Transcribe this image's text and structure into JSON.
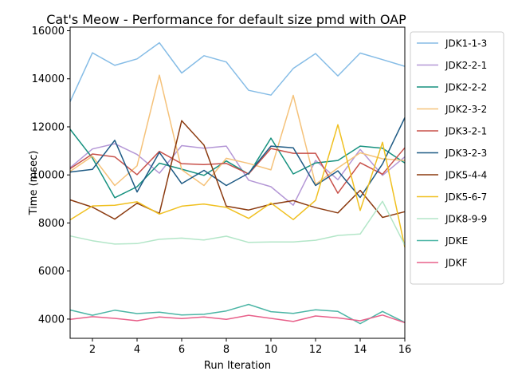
{
  "chart_data": {
    "type": "line",
    "title": "Cat's Meow - Performance for default size pmd with OAP",
    "xlabel": "Run Iteration",
    "ylabel": "Time (msec)",
    "xlim": [
      1,
      16
    ],
    "ylim": [
      3200,
      16150
    ],
    "xticks": [
      2,
      4,
      6,
      8,
      10,
      12,
      14,
      16
    ],
    "yticks": [
      4000,
      6000,
      8000,
      10000,
      12000,
      14000,
      16000
    ],
    "x": [
      1,
      2,
      3,
      4,
      5,
      6,
      7,
      8,
      9,
      10,
      11,
      12,
      13,
      14,
      15,
      16
    ],
    "grid": false,
    "legend_position": "outside-right",
    "series": [
      {
        "name": "JDK1-1-3",
        "color": "#85bce6",
        "values": [
          13050,
          15080,
          14560,
          14830,
          15500,
          14240,
          14960,
          14700,
          13520,
          13320,
          14430,
          15050,
          14120,
          15070,
          14800,
          14520
        ]
      },
      {
        "name": "JDK2-2-1",
        "color": "#b497d6",
        "values": [
          10300,
          11080,
          11300,
          10850,
          10070,
          11220,
          11110,
          11200,
          9780,
          9510,
          8740,
          10600,
          9800,
          11060,
          9980,
          10750
        ]
      },
      {
        "name": "JDK2-2-2",
        "color": "#16917f",
        "values": [
          11900,
          10700,
          9050,
          9510,
          10490,
          10240,
          9980,
          10580,
          10030,
          11530,
          10040,
          10500,
          10600,
          11200,
          11110,
          10500
        ]
      },
      {
        "name": "JDK2-3-2",
        "color": "#f5c27a",
        "values": [
          10150,
          10780,
          9560,
          10380,
          14150,
          10220,
          9560,
          10690,
          10480,
          10210,
          13310,
          9610,
          10290,
          10920,
          10670,
          10600
        ]
      },
      {
        "name": "JDK3-2-1",
        "color": "#c8514a",
        "values": [
          10260,
          10870,
          10750,
          10010,
          10980,
          10470,
          10430,
          10480,
          10040,
          11100,
          10900,
          10900,
          9240,
          10510,
          10030,
          11130
        ]
      },
      {
        "name": "JDK3-2-3",
        "color": "#1f5b85",
        "values": [
          10120,
          10230,
          11440,
          9290,
          10940,
          9640,
          10190,
          9560,
          10070,
          11200,
          11130,
          9560,
          10170,
          9060,
          10460,
          12380
        ]
      },
      {
        "name": "JDK5-4-4",
        "color": "#8b3a0f",
        "values": [
          8960,
          8660,
          8160,
          8820,
          8400,
          12260,
          11240,
          8700,
          8540,
          8780,
          8930,
          8640,
          8420,
          9360,
          8230,
          8470
        ]
      },
      {
        "name": "JDK5-6-7",
        "color": "#f0c020",
        "values": [
          8130,
          8710,
          8740,
          8880,
          8370,
          8700,
          8790,
          8650,
          8190,
          8830,
          8140,
          8940,
          12090,
          8520,
          11360,
          6990
        ]
      },
      {
        "name": "JDK8-9-9",
        "color": "#b3e6c8",
        "values": [
          7460,
          7260,
          7120,
          7140,
          7320,
          7370,
          7290,
          7450,
          7190,
          7210,
          7210,
          7280,
          7480,
          7540,
          8900,
          7080
        ]
      },
      {
        "name": "JDKE",
        "color": "#4bb5a5",
        "values": [
          4380,
          4160,
          4370,
          4230,
          4290,
          4170,
          4200,
          4340,
          4610,
          4310,
          4240,
          4390,
          4320,
          3810,
          4320,
          3860
        ]
      },
      {
        "name": "JDKF",
        "color": "#e8608a",
        "values": [
          3990,
          4100,
          4030,
          3930,
          4090,
          4020,
          4090,
          3990,
          4160,
          4030,
          3900,
          4130,
          4050,
          3930,
          4170,
          3850
        ]
      }
    ]
  }
}
